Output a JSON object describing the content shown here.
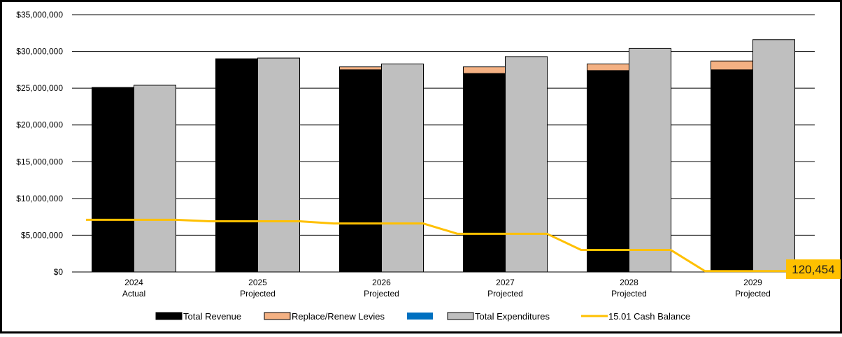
{
  "chart_data": {
    "type": "bar",
    "title": "",
    "xlabel": "",
    "ylabel": "",
    "ylim": [
      0,
      35000000
    ],
    "y_ticks": [
      0,
      5000000,
      10000000,
      15000000,
      20000000,
      25000000,
      30000000,
      35000000
    ],
    "y_tick_labels": [
      "$0",
      "$5,000,000",
      "$10,000,000",
      "$15,000,000",
      "$20,000,000",
      "$25,000,000",
      "$30,000,000",
      "$35,000,000"
    ],
    "grid": true,
    "legend_position": "bottom",
    "categories": [
      {
        "year": "2024",
        "status": "Actual"
      },
      {
        "year": "2025",
        "status": "Projected"
      },
      {
        "year": "2026",
        "status": "Projected"
      },
      {
        "year": "2027",
        "status": "Projected"
      },
      {
        "year": "2028",
        "status": "Projected"
      },
      {
        "year": "2029",
        "status": "Projected"
      }
    ],
    "series": [
      {
        "name": "Total Revenue",
        "kind": "stacked-bar",
        "stack": "revenue",
        "color": "#000000",
        "values": [
          25100000,
          29000000,
          27500000,
          27000000,
          27400000,
          27500000
        ]
      },
      {
        "name": "Replace/Renew Levies",
        "kind": "stacked-bar",
        "stack": "revenue",
        "color": "#f4b183",
        "values": [
          0,
          0,
          400000,
          900000,
          900000,
          1200000
        ]
      },
      {
        "name": "",
        "kind": "stacked-bar",
        "stack": "revenue",
        "color": "#0070c0",
        "values": [
          0,
          0,
          0,
          0,
          0,
          0
        ]
      },
      {
        "name": "Total Expenditures",
        "kind": "bar",
        "stack": "expenditures",
        "color": "#bfbfbf",
        "values": [
          25400000,
          29100000,
          28300000,
          29300000,
          30400000,
          31600000
        ]
      },
      {
        "name": "15.01 Cash Balance",
        "kind": "line",
        "color": "#ffc000",
        "values": [
          7100000,
          6900000,
          6600000,
          5200000,
          3000000,
          120454
        ]
      }
    ],
    "annotations": [
      {
        "text": "120,454",
        "series": "15.01 Cash Balance",
        "category_index": 5,
        "color": "#ffc000"
      }
    ]
  }
}
